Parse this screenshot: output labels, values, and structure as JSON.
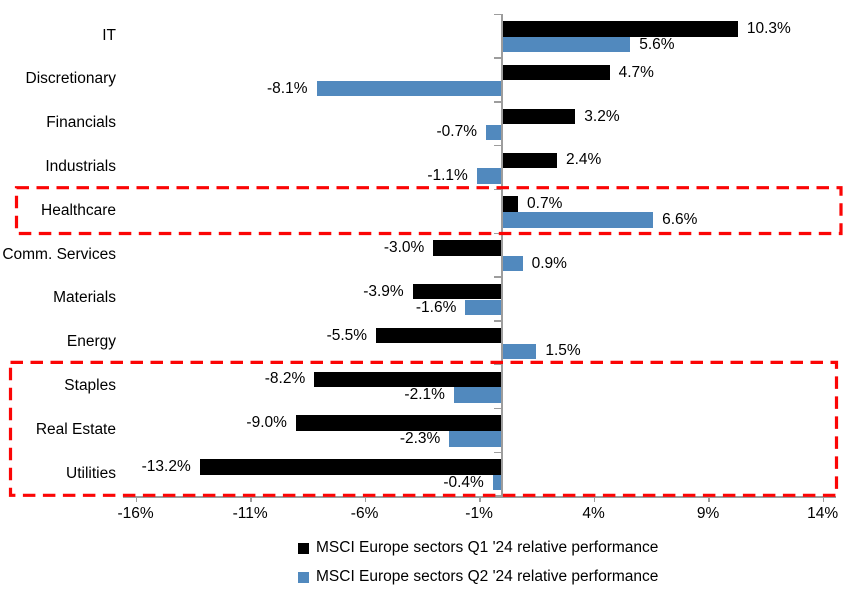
{
  "chart_data": {
    "type": "bar",
    "orientation": "horizontal",
    "title": "",
    "xlabel": "",
    "ylabel": "",
    "grid": false,
    "legend_position": "bottom",
    "background_color": "#ffffff",
    "axis_color": "#9d9d9d",
    "highlight_color": "#fb0505",
    "categories": [
      "IT",
      "Discretionary",
      "Financials",
      "Industrials",
      "Healthcare",
      "Comm. Services",
      "Materials",
      "Energy",
      "Staples",
      "Real Estate",
      "Utilities"
    ],
    "series": [
      {
        "name": "MSCI Europe sectors Q1 '24 relative performance",
        "color": "#000000",
        "values": [
          10.3,
          4.7,
          3.2,
          2.4,
          0.7,
          -3.0,
          -3.9,
          -5.5,
          -8.2,
          -9.0,
          -13.2
        ],
        "labels": [
          "10.3%",
          "4.7%",
          "3.2%",
          "2.4%",
          "0.7%",
          "-3.0%",
          "-3.9%",
          "-5.5%",
          "-8.2%",
          "-9.0%",
          "-13.2%"
        ]
      },
      {
        "name": "MSCI Europe sectors Q2 '24 relative performance",
        "color": "#5189be",
        "values": [
          5.6,
          -8.1,
          -0.7,
          -1.1,
          6.6,
          0.9,
          -1.6,
          1.5,
          -2.1,
          -2.3,
          -0.4
        ],
        "labels": [
          "5.6%",
          "-8.1%",
          "-0.7%",
          "-1.1%",
          "6.6%",
          "0.9%",
          "-1.6%",
          "1.5%",
          "-2.1%",
          "-2.3%",
          "-0.4%"
        ]
      }
    ],
    "x_axis": {
      "tick_labels": [
        "-16%",
        "-11%",
        "-6%",
        "-1%",
        "4%",
        "9%",
        "14%"
      ],
      "tick_values": [
        -16,
        -11,
        -6,
        -1,
        4,
        9,
        14
      ],
      "xlim": [
        -16.5,
        14.6
      ]
    },
    "highlights": [
      {
        "label": "Healthcare",
        "categories": [
          "Healthcare"
        ]
      },
      {
        "label": "Staples Real Estate Utilities",
        "categories": [
          "Staples",
          "Real Estate",
          "Utilities"
        ]
      }
    ]
  }
}
